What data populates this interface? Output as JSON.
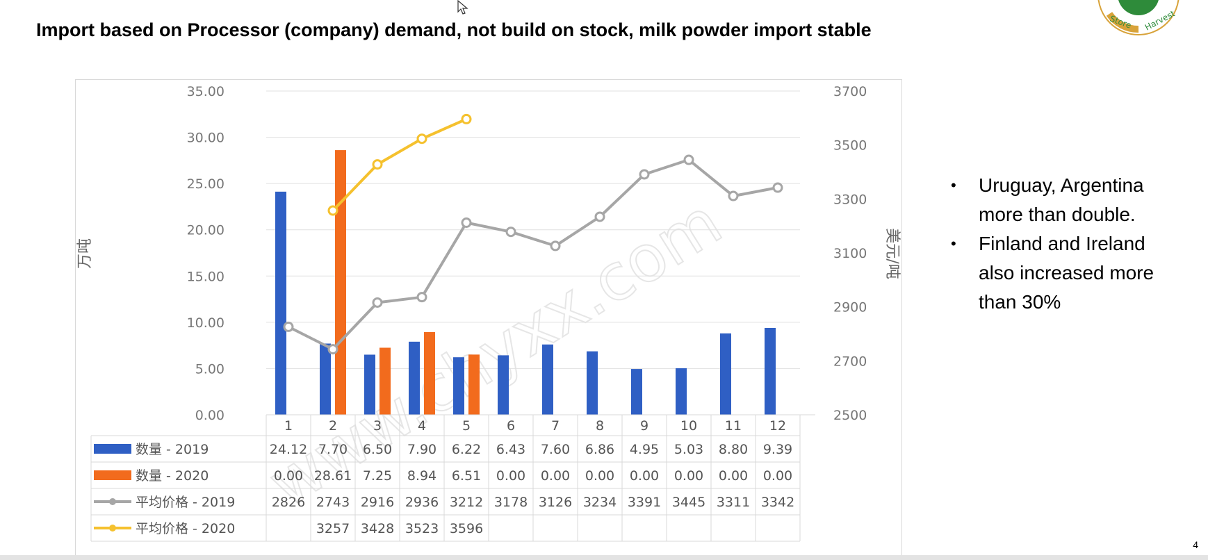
{
  "slide": {
    "title": "Import based on Processor (company) demand, not build on stock, milk powder import stable",
    "page_number": "4",
    "bullets": [
      "Uruguay, Argentina more than double.",
      "Finland and Ireland also increased more than 30%"
    ],
    "logo": {
      "text_top": "Store",
      "text_right": "Harvest",
      "colors": {
        "ring": "#d8a33a",
        "center": "#2e8b3a",
        "text": "#2e8b3a"
      }
    },
    "watermark": "www.chyxx.com"
  },
  "chart_data": {
    "type": "bar+line",
    "categories": [
      "1",
      "2",
      "3",
      "4",
      "5",
      "6",
      "7",
      "8",
      "9",
      "10",
      "11",
      "12"
    ],
    "y_left": {
      "label": "万吨",
      "ylim": [
        0,
        35
      ],
      "ticks": [
        "0.00",
        "5.00",
        "10.00",
        "15.00",
        "20.00",
        "25.00",
        "30.00",
        "35.00"
      ]
    },
    "y_right": {
      "label": "美元/吨",
      "ylim": [
        2500,
        3700
      ],
      "ticks": [
        "2500",
        "2700",
        "2900",
        "3100",
        "3300",
        "3500",
        "3700"
      ]
    },
    "grid": true,
    "series": [
      {
        "name": "数量 - 2019",
        "kind": "bar",
        "axis": "left",
        "color": "#2f5fc4",
        "values": [
          24.12,
          7.7,
          6.5,
          7.9,
          6.22,
          6.43,
          7.6,
          6.86,
          4.95,
          5.03,
          8.8,
          9.39
        ],
        "labels": [
          "24.12",
          "7.70",
          "6.50",
          "7.90",
          "6.22",
          "6.43",
          "7.60",
          "6.86",
          "4.95",
          "5.03",
          "8.80",
          "9.39"
        ]
      },
      {
        "name": "数量 - 2020",
        "kind": "bar",
        "axis": "left",
        "color": "#f26b1d",
        "values": [
          0.0,
          28.61,
          7.25,
          8.94,
          6.51,
          0.0,
          0.0,
          0.0,
          0.0,
          0.0,
          0.0,
          0.0
        ],
        "labels": [
          "0.00",
          "28.61",
          "7.25",
          "8.94",
          "6.51",
          "0.00",
          "0.00",
          "0.00",
          "0.00",
          "0.00",
          "0.00",
          "0.00"
        ]
      },
      {
        "name": "平均价格 - 2019",
        "kind": "line",
        "axis": "right",
        "color": "#a6a6a6",
        "values": [
          2826,
          2743,
          2916,
          2936,
          3212,
          3178,
          3126,
          3234,
          3391,
          3445,
          3311,
          3342
        ],
        "labels": [
          "2826",
          "2743",
          "2916",
          "2936",
          "3212",
          "3178",
          "3126",
          "3234",
          "3391",
          "3445",
          "3311",
          "3342"
        ]
      },
      {
        "name": "平均价格 - 2020",
        "kind": "line",
        "axis": "right",
        "color": "#f5c12e",
        "values": [
          null,
          3257,
          3428,
          3523,
          3596,
          null,
          null,
          null,
          null,
          null,
          null,
          null
        ],
        "labels": [
          "",
          "3257",
          "3428",
          "3523",
          "3596",
          "",
          "",
          "",
          "",
          "",
          "",
          ""
        ]
      }
    ],
    "legend": "data-table-below"
  }
}
